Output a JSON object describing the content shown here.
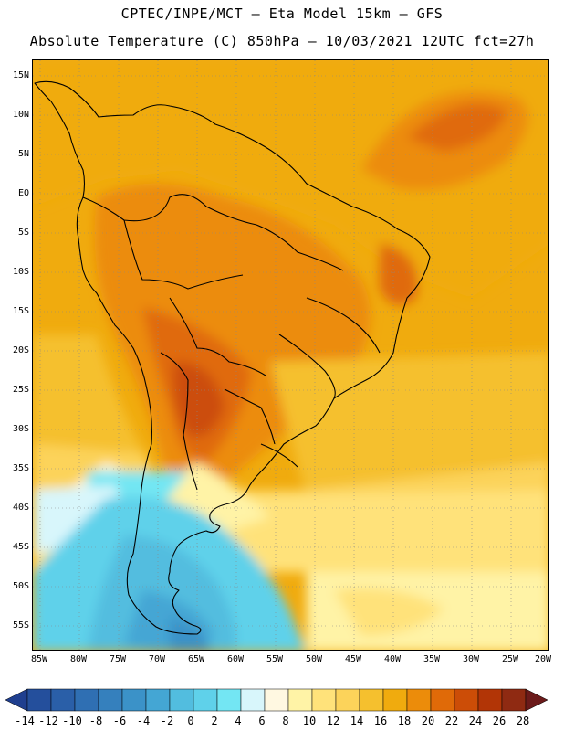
{
  "title_line1": "CPTEC/INPE/MCT –  Eta Model 15km – GFS",
  "title_line2": "Absolute Temperature (C) 850hPa – 10/03/2021 12UTC fct=27h",
  "lat_labels": [
    "15N",
    "10N",
    "5N",
    "EQ",
    "5S",
    "10S",
    "15S",
    "20S",
    "25S",
    "30S",
    "35S",
    "40S",
    "45S",
    "50S",
    "55S"
  ],
  "lon_labels": [
    "85W",
    "80W",
    "75W",
    "70W",
    "65W",
    "60W",
    "55W",
    "50W",
    "45W",
    "40W",
    "35W",
    "30W",
    "25W",
    "20W"
  ],
  "colorbar": {
    "labels": [
      "-14",
      "-12",
      "-10",
      "-8",
      "-6",
      "-4",
      "-2",
      "0",
      "2",
      "4",
      "6",
      "8",
      "10",
      "12",
      "14",
      "16",
      "18",
      "20",
      "22",
      "24",
      "26",
      "28"
    ],
    "colors": [
      "#1f3f8f",
      "#244f9c",
      "#2a5fa8",
      "#2f6fb3",
      "#3580bd",
      "#3b92c8",
      "#44a6d4",
      "#52bddf",
      "#5fd1ea",
      "#73e6f3",
      "#d8f6fb",
      "#fff8e1",
      "#fff3a6",
      "#ffe27a",
      "#fcd35a",
      "#f5c02e",
      "#f0ab0e",
      "#ec8c0a",
      "#e06a08",
      "#cc4d07",
      "#b23506",
      "#8f2a12",
      "#6b1a1a"
    ]
  }
}
